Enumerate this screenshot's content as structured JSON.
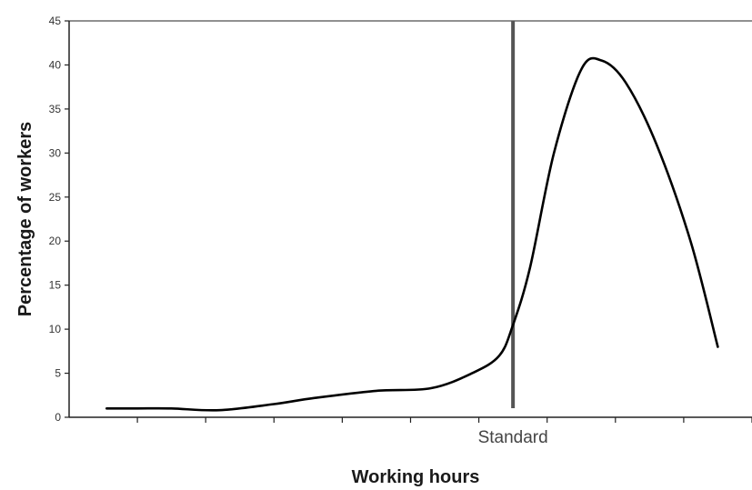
{
  "chart_data": {
    "type": "line",
    "xlabel": "Working hours",
    "ylabel": "Percentage of workers",
    "ylim": [
      0,
      45
    ],
    "yticks": [
      0,
      5,
      10,
      15,
      20,
      25,
      30,
      35,
      40,
      45
    ],
    "xlim": [
      0,
      10
    ],
    "xticks": [
      1,
      2,
      3,
      4,
      5,
      6,
      7,
      8,
      9,
      10
    ],
    "grid": false,
    "legend": "none",
    "line_color": "#000000",
    "reference_line": {
      "x": 6.5,
      "label": "Standard",
      "color": "#555555"
    },
    "series": [
      {
        "x": [
          0.55,
          1.0,
          1.5,
          2.2,
          3.0,
          3.6,
          4.5,
          5.3,
          5.9,
          6.3,
          6.5,
          6.75,
          7.1,
          7.5,
          7.8,
          8.15,
          8.6,
          9.1,
          9.5
        ],
        "y": [
          1,
          1,
          1,
          0.8,
          1.5,
          2.2,
          3.0,
          3.3,
          5.0,
          7.0,
          10.5,
          17.0,
          30.0,
          39.5,
          40.5,
          38.0,
          31.0,
          20.0,
          8.0
        ]
      }
    ]
  }
}
